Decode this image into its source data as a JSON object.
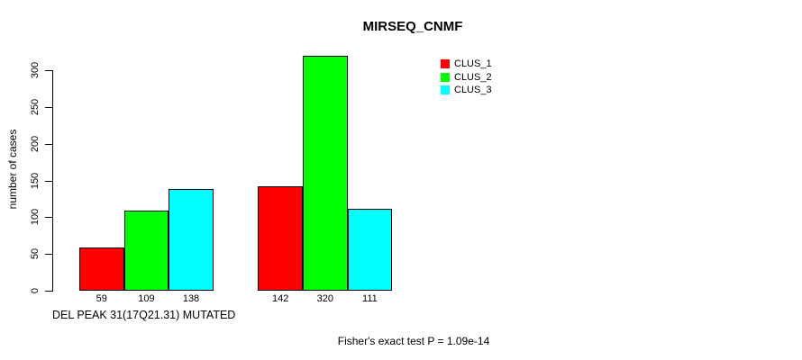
{
  "page": {
    "background": "#ffffff",
    "text_color": "#000000"
  },
  "chart_data": {
    "type": "bar",
    "title": "MIRSEQ_CNMF",
    "ylabel": "number of cases",
    "xlabel": "DEL PEAK 31(17Q21.31) MUTATED",
    "footnote": "Fisher's exact test P = 1.09e-14",
    "grid": false,
    "axis_color": "#000000",
    "bar_border_color": "#000000",
    "ylim": [
      0,
      320
    ],
    "yticks": [
      0,
      50,
      100,
      150,
      200,
      250,
      300
    ],
    "groups": 2,
    "series": [
      {
        "name": "CLUS_1",
        "color": "#FF0000",
        "values": [
          59,
          142
        ]
      },
      {
        "name": "CLUS_2",
        "color": "#00FF00",
        "values": [
          109,
          320
        ]
      },
      {
        "name": "CLUS_3",
        "color": "#00FFFF",
        "values": [
          138,
          111
        ]
      }
    ],
    "bar_value_labels": [
      [
        "59",
        "109",
        "138"
      ],
      [
        "142",
        "320",
        "111"
      ]
    ],
    "legend": {
      "position": "top-right",
      "entries": [
        {
          "label": "CLUS_1",
          "color": "#FF0000"
        },
        {
          "label": "CLUS_2",
          "color": "#00FF00"
        },
        {
          "label": "CLUS_3",
          "color": "#00FFFF"
        }
      ]
    }
  }
}
